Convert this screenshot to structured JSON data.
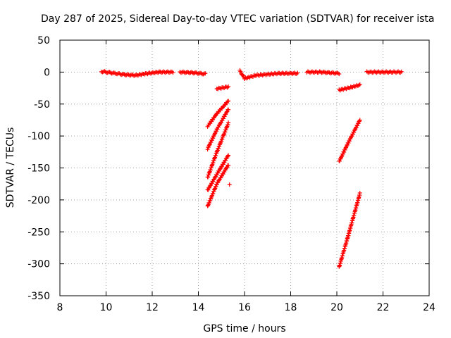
{
  "chart_data": {
    "type": "scatter",
    "title": "Day 287 of 2025, Sidereal Day-to-day VTEC variation (SDTVAR) for receiver ista",
    "xlabel": "GPS time / hours",
    "ylabel": "SDTVAR / TECUs",
    "xlim": [
      8,
      24
    ],
    "ylim": [
      -350,
      50
    ],
    "xticks": [
      "8",
      "10",
      "12",
      "14",
      "16",
      "18",
      "20",
      "22",
      "24"
    ],
    "yticks": [
      "50",
      "0",
      "-50",
      "-100",
      "-150",
      "-200",
      "-250",
      "-300",
      "-350"
    ],
    "grid": true,
    "marker": "plus",
    "color": "#ff0000",
    "series": [
      {
        "segments": [
          [
            [
              9.8,
              1
            ],
            [
              10.2,
              -1
            ],
            [
              10.8,
              -4
            ],
            [
              11.3,
              -5
            ],
            [
              11.8,
              -2
            ],
            [
              12.3,
              0
            ],
            [
              12.9,
              0
            ]
          ],
          [
            [
              13.2,
              0
            ],
            [
              13.8,
              -1
            ],
            [
              14.3,
              -3
            ]
          ],
          [
            [
              14.8,
              -26
            ],
            [
              15.3,
              -23
            ]
          ],
          [
            [
              14.4,
              -85
            ],
            [
              14.8,
              -65
            ],
            [
              15.3,
              -45
            ]
          ],
          [
            [
              14.4,
              -120
            ],
            [
              14.8,
              -90
            ],
            [
              15.3,
              -58
            ]
          ],
          [
            [
              14.4,
              -165
            ],
            [
              14.8,
              -125
            ],
            [
              15.3,
              -80
            ]
          ],
          [
            [
              14.4,
              -185
            ],
            [
              14.8,
              -160
            ],
            [
              15.3,
              -130
            ]
          ],
          [
            [
              14.4,
              -210
            ],
            [
              14.8,
              -175
            ],
            [
              15.3,
              -145
            ]
          ],
          [
            [
              15.35,
              -176
            ]
          ],
          [
            [
              15.8,
              2
            ],
            [
              16.0,
              -10
            ],
            [
              16.5,
              -5
            ],
            [
              17.5,
              -2
            ],
            [
              18.3,
              -2
            ]
          ],
          [
            [
              18.7,
              0
            ],
            [
              19.3,
              0
            ],
            [
              20.1,
              -2
            ]
          ],
          [
            [
              20.1,
              -28
            ],
            [
              20.6,
              -24
            ],
            [
              21.0,
              -20
            ]
          ],
          [
            [
              20.1,
              -140
            ],
            [
              20.5,
              -110
            ],
            [
              21.0,
              -75
            ]
          ],
          [
            [
              20.1,
              -305
            ],
            [
              20.5,
              -255
            ],
            [
              21.0,
              -190
            ]
          ],
          [
            [
              21.3,
              0
            ],
            [
              22.0,
              0
            ],
            [
              22.8,
              0
            ]
          ]
        ]
      }
    ]
  }
}
